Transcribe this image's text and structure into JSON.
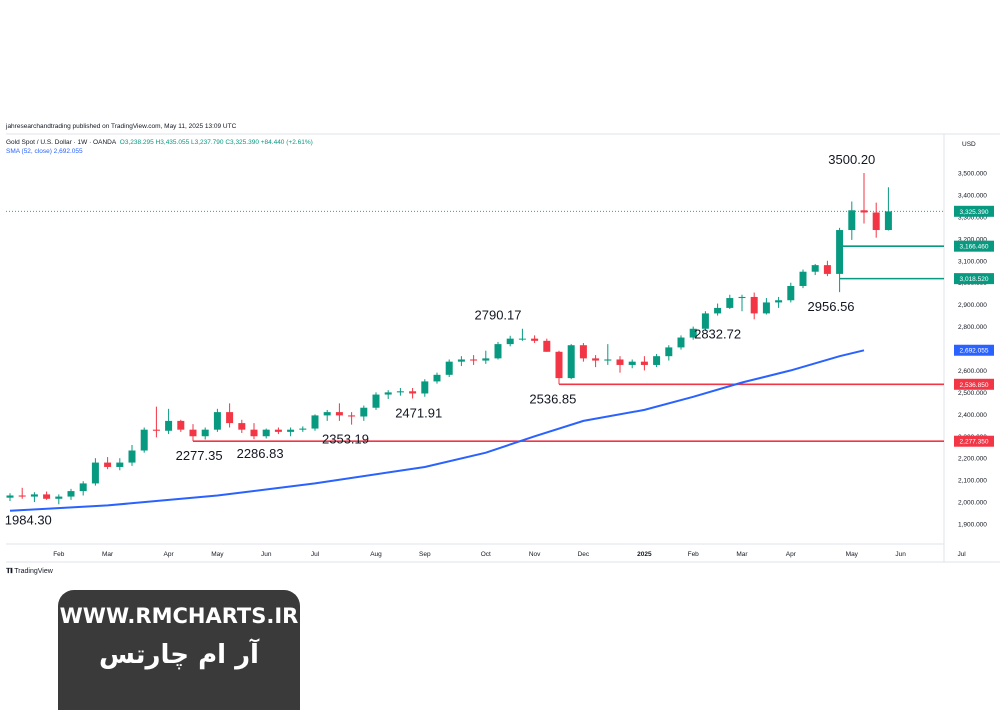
{
  "header": {
    "published": "jahresearchandtrading published on TradingView.com, May 11, 2025 13:09 UTC",
    "symbol": "Gold Spot / U.S. Dollar · 1W · OANDA",
    "ohlc": "O3,238.295  H3,435.055  L3,237.790  C3,325.390  +84.440 (+2.61%)",
    "sma": "SMA (52, close)  2,692.055"
  },
  "footer_logo": "TradingView",
  "brand": {
    "url": "WWW.RMCHARTS.IR",
    "persian": "آر ام چارتس"
  },
  "chart_data": {
    "type": "candlestick",
    "currency": "USD",
    "ylim": [
      1800,
      3600
    ],
    "y_ticks": [
      "1,900.000",
      "2,000.000",
      "2,100.000",
      "2,200.000",
      "2,300.000",
      "2,400.000",
      "2,500.000",
      "2,600.000",
      "2,700.000",
      "2,800.000",
      "2,900.000",
      "3,000.000",
      "3,100.000",
      "3,200.000",
      "3,300.000",
      "3,400.000",
      "3,500.000"
    ],
    "x_ticks": [
      {
        "label": "Feb",
        "week": 4
      },
      {
        "label": "Mar",
        "week": 8
      },
      {
        "label": "Apr",
        "week": 13
      },
      {
        "label": "May",
        "week": 17
      },
      {
        "label": "Jun",
        "week": 21
      },
      {
        "label": "Jul",
        "week": 25
      },
      {
        "label": "Aug",
        "week": 30
      },
      {
        "label": "Sep",
        "week": 34
      },
      {
        "label": "Oct",
        "week": 39
      },
      {
        "label": "Nov",
        "week": 43
      },
      {
        "label": "Dec",
        "week": 47
      },
      {
        "label": "2025",
        "week": 52,
        "bold": true
      },
      {
        "label": "Feb",
        "week": 56
      },
      {
        "label": "Mar",
        "week": 60
      },
      {
        "label": "Apr",
        "week": 64
      },
      {
        "label": "May",
        "week": 69
      },
      {
        "label": "Jun",
        "week": 73
      },
      {
        "label": "Jul",
        "week": 78
      }
    ],
    "candles": [
      {
        "o": 2020,
        "h": 2040,
        "l": 2005,
        "c": 2030
      },
      {
        "o": 2030,
        "h": 2065,
        "l": 2015,
        "c": 2025
      },
      {
        "o": 2025,
        "h": 2045,
        "l": 2000,
        "c": 2035
      },
      {
        "o": 2035,
        "h": 2048,
        "l": 2010,
        "c": 2015
      },
      {
        "o": 2015,
        "h": 2035,
        "l": 1990,
        "c": 2025
      },
      {
        "o": 2025,
        "h": 2060,
        "l": 2010,
        "c": 2050
      },
      {
        "o": 2050,
        "h": 2095,
        "l": 2030,
        "c": 2085
      },
      {
        "o": 2085,
        "h": 2200,
        "l": 2075,
        "c": 2180
      },
      {
        "o": 2180,
        "h": 2205,
        "l": 2150,
        "c": 2160
      },
      {
        "o": 2160,
        "h": 2200,
        "l": 2145,
        "c": 2180
      },
      {
        "o": 2180,
        "h": 2260,
        "l": 2165,
        "c": 2235
      },
      {
        "o": 2235,
        "h": 2340,
        "l": 2225,
        "c": 2330
      },
      {
        "o": 2330,
        "h": 2435,
        "l": 2295,
        "c": 2325
      },
      {
        "o": 2325,
        "h": 2425,
        "l": 2310,
        "c": 2370
      },
      {
        "o": 2370,
        "h": 2375,
        "l": 2320,
        "c": 2330
      },
      {
        "o": 2330,
        "h": 2355,
        "l": 2278,
        "c": 2300
      },
      {
        "o": 2300,
        "h": 2340,
        "l": 2285,
        "c": 2330
      },
      {
        "o": 2330,
        "h": 2425,
        "l": 2320,
        "c": 2410
      },
      {
        "o": 2410,
        "h": 2450,
        "l": 2340,
        "c": 2360
      },
      {
        "o": 2360,
        "h": 2375,
        "l": 2315,
        "c": 2330
      },
      {
        "o": 2330,
        "h": 2360,
        "l": 2287,
        "c": 2300
      },
      {
        "o": 2300,
        "h": 2335,
        "l": 2290,
        "c": 2330
      },
      {
        "o": 2330,
        "h": 2340,
        "l": 2310,
        "c": 2320
      },
      {
        "o": 2320,
        "h": 2340,
        "l": 2300,
        "c": 2330
      },
      {
        "o": 2330,
        "h": 2345,
        "l": 2320,
        "c": 2335
      },
      {
        "o": 2335,
        "h": 2400,
        "l": 2325,
        "c": 2395
      },
      {
        "o": 2395,
        "h": 2420,
        "l": 2370,
        "c": 2410
      },
      {
        "o": 2410,
        "h": 2450,
        "l": 2370,
        "c": 2395
      },
      {
        "o": 2395,
        "h": 2410,
        "l": 2353,
        "c": 2390
      },
      {
        "o": 2390,
        "h": 2440,
        "l": 2370,
        "c": 2430
      },
      {
        "o": 2430,
        "h": 2500,
        "l": 2420,
        "c": 2490
      },
      {
        "o": 2490,
        "h": 2510,
        "l": 2470,
        "c": 2500
      },
      {
        "o": 2500,
        "h": 2520,
        "l": 2485,
        "c": 2505
      },
      {
        "o": 2505,
        "h": 2520,
        "l": 2472,
        "c": 2495
      },
      {
        "o": 2495,
        "h": 2560,
        "l": 2480,
        "c": 2550
      },
      {
        "o": 2550,
        "h": 2590,
        "l": 2540,
        "c": 2580
      },
      {
        "o": 2580,
        "h": 2650,
        "l": 2570,
        "c": 2640
      },
      {
        "o": 2640,
        "h": 2665,
        "l": 2620,
        "c": 2650
      },
      {
        "o": 2650,
        "h": 2670,
        "l": 2625,
        "c": 2645
      },
      {
        "o": 2645,
        "h": 2690,
        "l": 2630,
        "c": 2655
      },
      {
        "o": 2655,
        "h": 2730,
        "l": 2650,
        "c": 2720
      },
      {
        "o": 2720,
        "h": 2758,
        "l": 2710,
        "c": 2745
      },
      {
        "o": 2745,
        "h": 2790,
        "l": 2735,
        "c": 2745
      },
      {
        "o": 2745,
        "h": 2760,
        "l": 2725,
        "c": 2735
      },
      {
        "o": 2735,
        "h": 2745,
        "l": 2685,
        "c": 2685
      },
      {
        "o": 2685,
        "h": 2690,
        "l": 2537,
        "c": 2565
      },
      {
        "o": 2565,
        "h": 2720,
        "l": 2560,
        "c": 2715
      },
      {
        "o": 2715,
        "h": 2725,
        "l": 2640,
        "c": 2655
      },
      {
        "o": 2655,
        "h": 2670,
        "l": 2615,
        "c": 2645
      },
      {
        "o": 2645,
        "h": 2720,
        "l": 2625,
        "c": 2650
      },
      {
        "o": 2650,
        "h": 2665,
        "l": 2590,
        "c": 2625
      },
      {
        "o": 2625,
        "h": 2650,
        "l": 2610,
        "c": 2640
      },
      {
        "o": 2640,
        "h": 2665,
        "l": 2600,
        "c": 2625
      },
      {
        "o": 2625,
        "h": 2675,
        "l": 2615,
        "c": 2665
      },
      {
        "o": 2665,
        "h": 2715,
        "l": 2645,
        "c": 2705
      },
      {
        "o": 2705,
        "h": 2760,
        "l": 2695,
        "c": 2750
      },
      {
        "o": 2750,
        "h": 2800,
        "l": 2740,
        "c": 2790
      },
      {
        "o": 2790,
        "h": 2870,
        "l": 2780,
        "c": 2860
      },
      {
        "o": 2860,
        "h": 2905,
        "l": 2850,
        "c": 2885
      },
      {
        "o": 2885,
        "h": 2945,
        "l": 2880,
        "c": 2930
      },
      {
        "o": 2930,
        "h": 2945,
        "l": 2870,
        "c": 2935
      },
      {
        "o": 2935,
        "h": 2955,
        "l": 2833,
        "c": 2860
      },
      {
        "o": 2860,
        "h": 2930,
        "l": 2855,
        "c": 2910
      },
      {
        "o": 2910,
        "h": 2935,
        "l": 2885,
        "c": 2920
      },
      {
        "o": 2920,
        "h": 3000,
        "l": 2910,
        "c": 2985
      },
      {
        "o": 2985,
        "h": 3060,
        "l": 2975,
        "c": 3050
      },
      {
        "o": 3050,
        "h": 3085,
        "l": 3035,
        "c": 3080
      },
      {
        "o": 3080,
        "h": 3100,
        "l": 3030,
        "c": 3040
      },
      {
        "o": 3040,
        "h": 3250,
        "l": 2957,
        "c": 3240
      },
      {
        "o": 3240,
        "h": 3370,
        "l": 3195,
        "c": 3330
      },
      {
        "o": 3330,
        "h": 3500,
        "l": 3270,
        "c": 3320
      },
      {
        "o": 3320,
        "h": 3365,
        "l": 3205,
        "c": 3240
      },
      {
        "o": 3240,
        "h": 3435,
        "l": 3238,
        "c": 3325
      }
    ],
    "sma": [
      {
        "week": 0,
        "v": 1960
      },
      {
        "week": 8,
        "v": 1985
      },
      {
        "week": 17,
        "v": 2030
      },
      {
        "week": 25,
        "v": 2085
      },
      {
        "week": 34,
        "v": 2160
      },
      {
        "week": 39,
        "v": 2225
      },
      {
        "week": 43,
        "v": 2300
      },
      {
        "week": 47,
        "v": 2370
      },
      {
        "week": 52,
        "v": 2420
      },
      {
        "week": 56,
        "v": 2480
      },
      {
        "week": 60,
        "v": 2545
      },
      {
        "week": 64,
        "v": 2600
      },
      {
        "week": 68,
        "v": 2665
      },
      {
        "week": 70,
        "v": 2692
      }
    ],
    "levels": [
      {
        "value": 3166.46,
        "label": "3,166.460",
        "color": "#089981",
        "start_week": 68
      },
      {
        "value": 3018.52,
        "label": "3,018.520",
        "color": "#089981",
        "start_week": 68
      },
      {
        "value": 2536.85,
        "label": "2,536.850",
        "color": "#f23645",
        "start_week": 45
      },
      {
        "value": 2277.35,
        "label": "2,277.350",
        "color": "#f23645",
        "start_week": 15
      }
    ],
    "sma_label": {
      "value": 2692.055,
      "label": "2,692.055",
      "color": "#2962ff"
    },
    "price_line": {
      "value": 3325.39,
      "label": "3,325.390",
      "color": "#089981"
    },
    "annotations": [
      {
        "text": "1984.30",
        "week": 1.5,
        "price": 1984.3,
        "pos": "below"
      },
      {
        "text": "2277.35",
        "week": 15.5,
        "price": 2277.35,
        "pos": "below"
      },
      {
        "text": "2286.83",
        "week": 20.5,
        "price": 2286.83,
        "pos": "below"
      },
      {
        "text": "2353.19",
        "week": 27.5,
        "price": 2353.19,
        "pos": "below"
      },
      {
        "text": "2471.91",
        "week": 33.5,
        "price": 2471.91,
        "pos": "below"
      },
      {
        "text": "2790.17",
        "week": 40,
        "price": 2790.17,
        "pos": "above"
      },
      {
        "text": "2536.85",
        "week": 44.5,
        "price": 2536.85,
        "pos": "below"
      },
      {
        "text": "2832.72",
        "week": 58,
        "price": 2832.72,
        "pos": "below"
      },
      {
        "text": "2956.56",
        "week": 67.3,
        "price": 2956.56,
        "pos": "below"
      },
      {
        "text": "3500.20",
        "week": 69,
        "price": 3500.2,
        "pos": "above"
      }
    ],
    "colors": {
      "up": "#089981",
      "down": "#f23645",
      "sma": "#2962ff"
    }
  }
}
